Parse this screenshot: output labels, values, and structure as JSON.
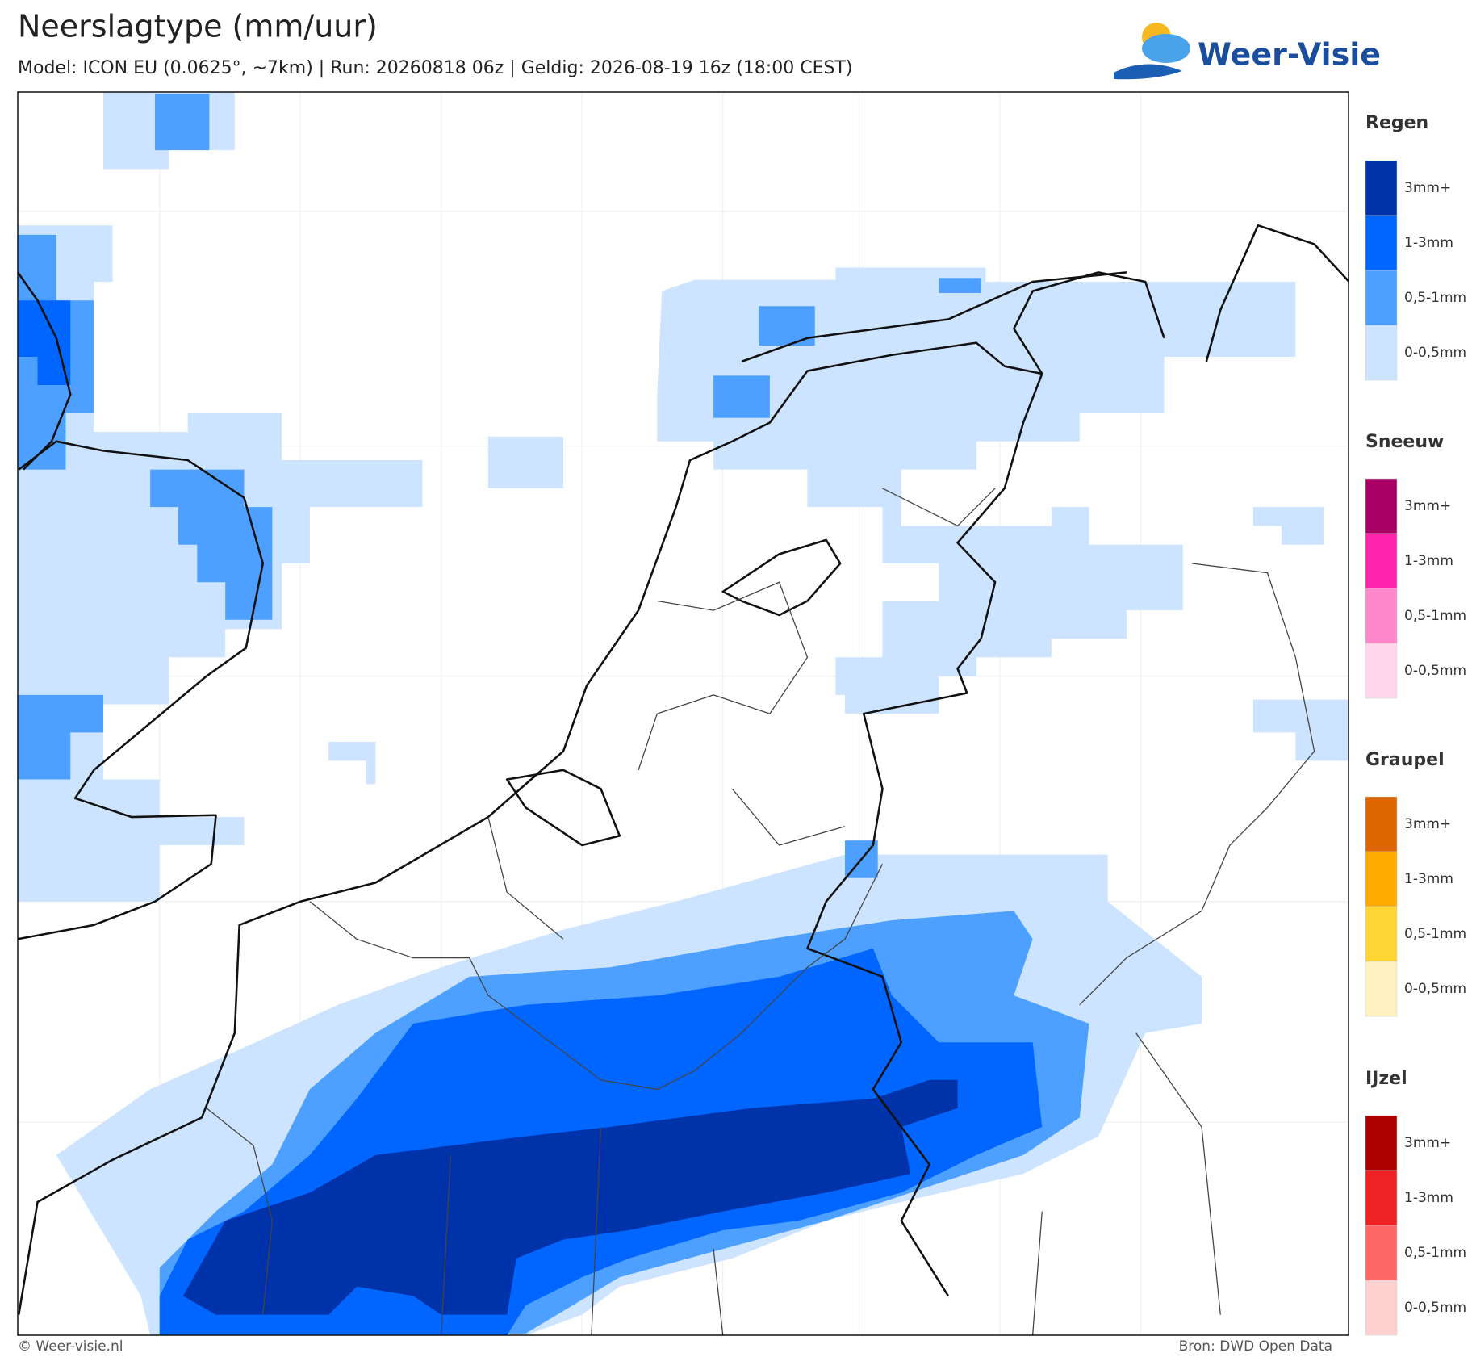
{
  "header": {
    "title": "Neerslagtype (mm/uur)",
    "subtitle": "Model: ICON EU (0.0625°, ~7km)  |  Run: 20260818 06z  |  Geldig: 2026-08-19 16z (18:00 CEST)"
  },
  "logo": {
    "text": "Weer-Visie"
  },
  "legend": {
    "groups": [
      {
        "title": "Regen",
        "items": [
          "3mm+",
          "1-3mm",
          "0,5-1mm",
          "0-0,5mm"
        ],
        "colors": [
          "#0033aa",
          "#0066ff",
          "#4da0ff",
          "#cce4ff"
        ]
      },
      {
        "title": "Sneeuw",
        "items": [
          "3mm+",
          "1-3mm",
          "0,5-1mm",
          "0-0,5mm"
        ],
        "colors": [
          "#aa0066",
          "#ff22aa",
          "#ff88cc",
          "#ffd6ec"
        ]
      },
      {
        "title": "Graupel",
        "items": [
          "3mm+",
          "1-3mm",
          "0,5-1mm",
          "0-0,5mm"
        ],
        "colors": [
          "#dd6600",
          "#ffaa00",
          "#ffd633",
          "#fff2c2"
        ]
      },
      {
        "title": "IJzel",
        "items": [
          "3mm+",
          "1-3mm",
          "0,5-1mm",
          "0-0,5mm"
        ],
        "colors": [
          "#aa0000",
          "#ee2222",
          "#ff6666",
          "#ffd0d0"
        ]
      }
    ]
  },
  "footer": {
    "left": "© Weer-visie.nl",
    "right": "Bron: DWD Open Data"
  }
}
